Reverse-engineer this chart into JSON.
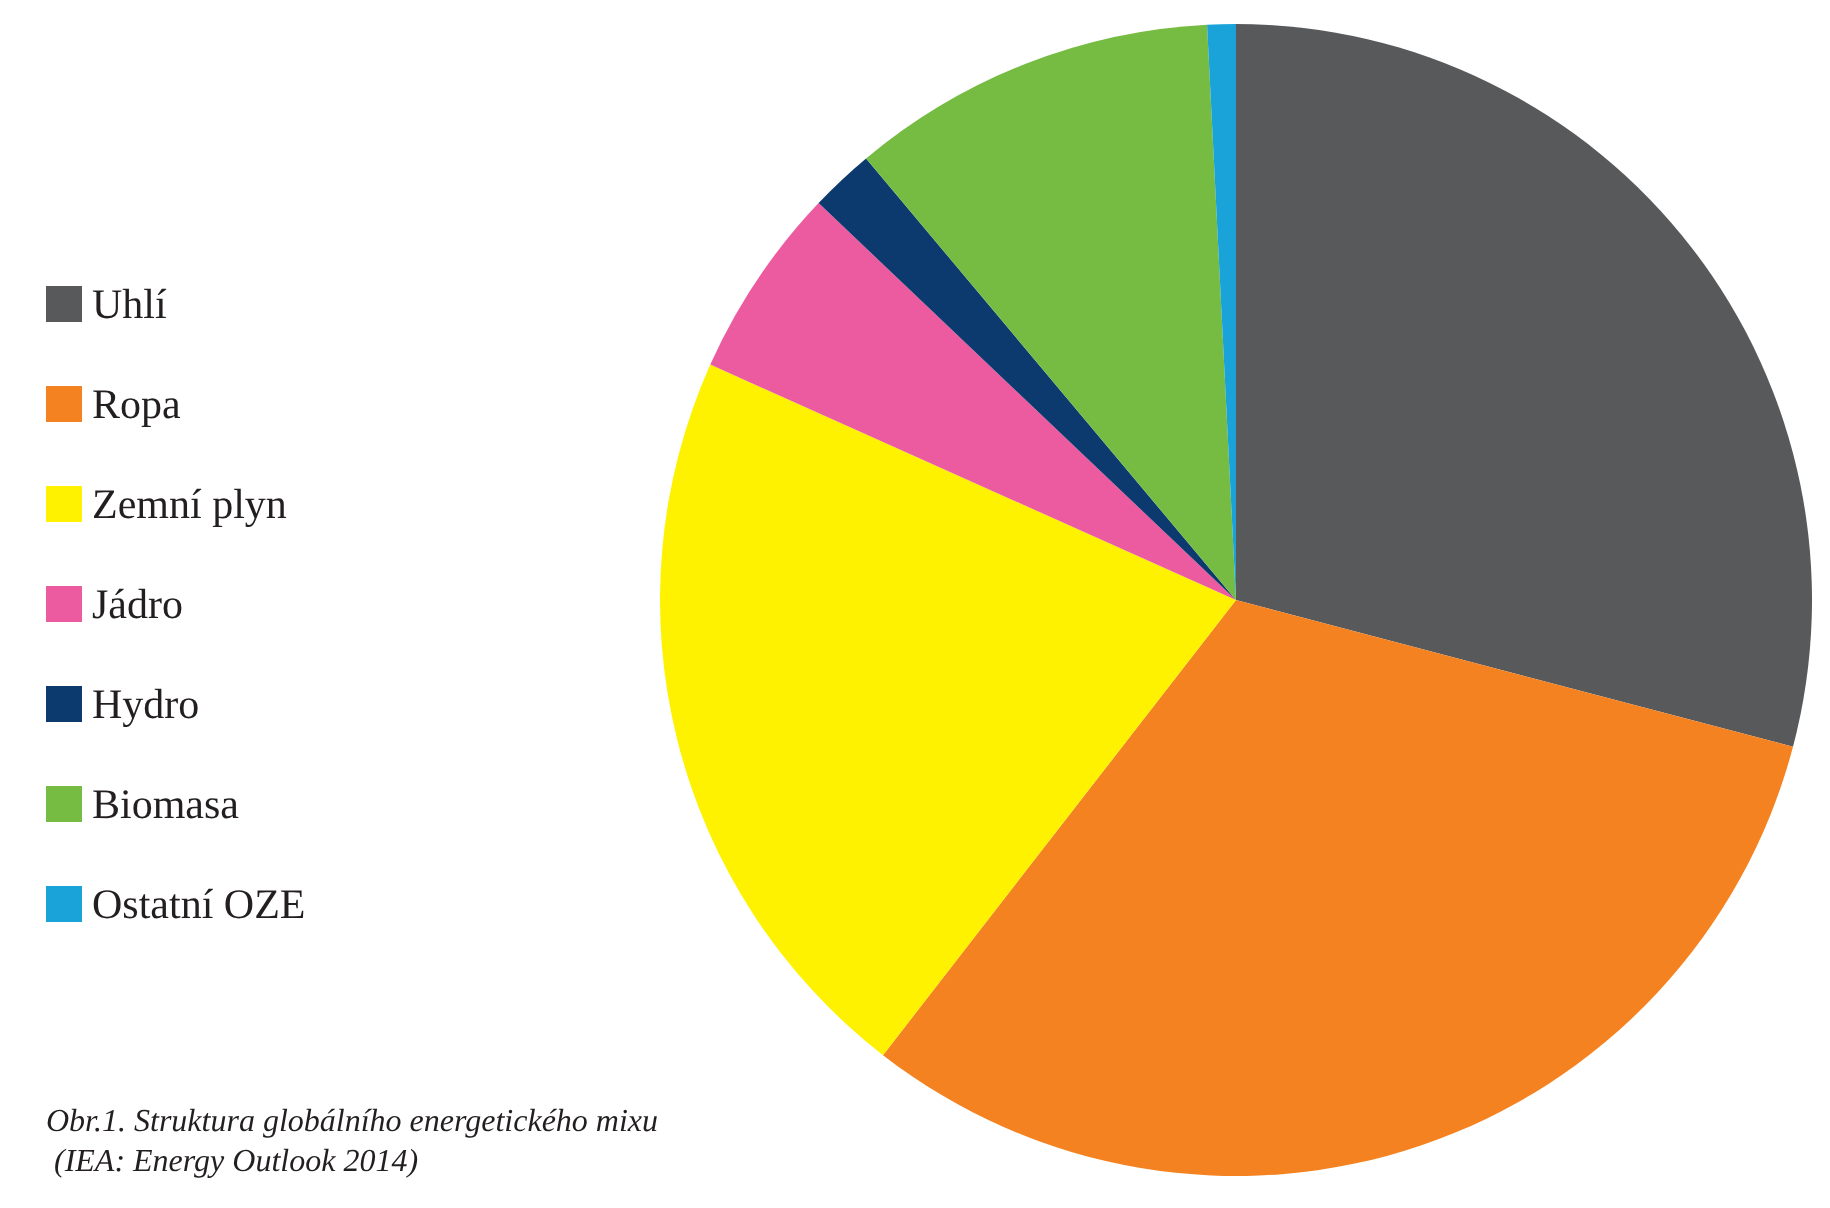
{
  "chart_data": {
    "type": "pie",
    "categories": [
      "Uhlí",
      "Ropa",
      "Zemní plyn",
      "Jádro",
      "Hydro",
      "Biomasa",
      "Ostatní OZE"
    ],
    "values": [
      29.1,
      31.4,
      21.2,
      5.4,
      1.8,
      10.3,
      0.8
    ],
    "colors": [
      "#58595b",
      "#f58220",
      "#fff200",
      "#ec5ba0",
      "#0d3a6e",
      "#76bc43",
      "#1aa3d8"
    ],
    "legend": "left",
    "annotations": [
      "Obr.1. Struktura globálního energetického mixu (IEA: Energy Outlook 2014)"
    ]
  }
}
